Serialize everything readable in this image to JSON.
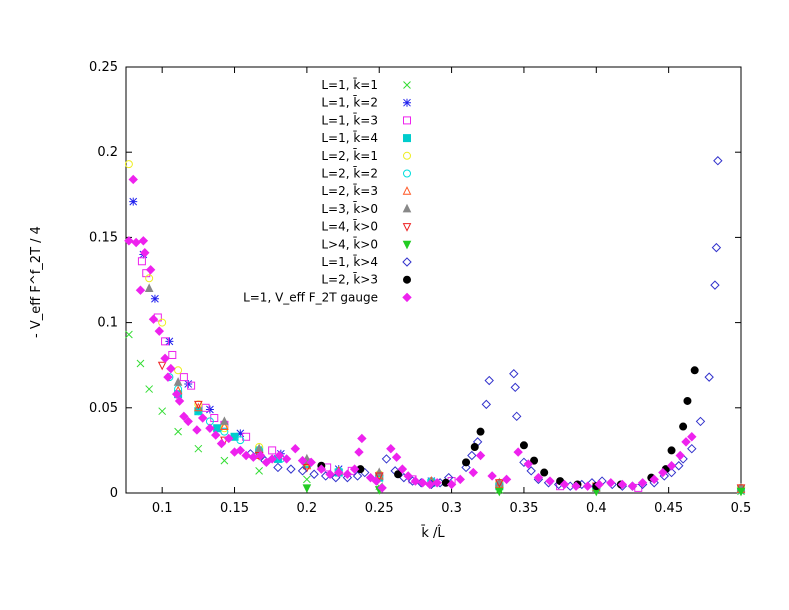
{
  "chart_data": {
    "type": "scatter",
    "title": "",
    "xlabel": "k̄ /L̂",
    "ylabel": "- V_eff F^f_2T / 4",
    "xlim": [
      0.075,
      0.5
    ],
    "ylim": [
      0,
      0.25
    ],
    "x_ticks": [
      "0.1",
      "0.15",
      "0.2",
      "0.25",
      "0.3",
      "0.35",
      "0.4",
      "0.45",
      "0.5"
    ],
    "y_ticks": [
      "0",
      "0.05",
      "0.1",
      "0.15",
      "0.2",
      "0.25"
    ],
    "grid": false,
    "legend_position": "top-center",
    "series": [
      {
        "name": "L=1, k̄=1",
        "marker": "x",
        "color": "#33dd33",
        "points": [
          [
            0.077,
            0.093
          ],
          [
            0.085,
            0.076
          ],
          [
            0.091,
            0.061
          ],
          [
            0.1,
            0.048
          ],
          [
            0.111,
            0.036
          ],
          [
            0.125,
            0.026
          ],
          [
            0.143,
            0.019
          ],
          [
            0.167,
            0.013
          ],
          [
            0.2,
            0.008
          ],
          [
            0.25,
            0.004
          ],
          [
            0.333,
            0.002
          ],
          [
            0.5,
            0.001
          ]
        ]
      },
      {
        "name": "L=1, k̄=2",
        "marker": "asterisk",
        "color": "#2222ee",
        "points": [
          [
            0.08,
            0.171
          ],
          [
            0.087,
            0.14
          ],
          [
            0.095,
            0.114
          ],
          [
            0.105,
            0.089
          ],
          [
            0.118,
            0.064
          ],
          [
            0.133,
            0.049
          ],
          [
            0.154,
            0.035
          ],
          [
            0.182,
            0.023
          ],
          [
            0.222,
            0.014
          ],
          [
            0.286,
            0.007
          ],
          [
            0.4,
            0.003
          ]
        ]
      },
      {
        "name": "L=1, k̄=3",
        "marker": "square-open",
        "color": "#ee22ee",
        "points": [
          [
            0.086,
            0.136
          ],
          [
            0.089,
            0.129
          ],
          [
            0.097,
            0.103
          ],
          [
            0.102,
            0.089
          ],
          [
            0.107,
            0.081
          ],
          [
            0.115,
            0.068
          ],
          [
            0.12,
            0.063
          ],
          [
            0.13,
            0.05
          ],
          [
            0.136,
            0.044
          ],
          [
            0.143,
            0.04
          ],
          [
            0.158,
            0.033
          ],
          [
            0.176,
            0.025
          ],
          [
            0.2,
            0.018
          ],
          [
            0.214,
            0.015
          ],
          [
            0.231,
            0.013
          ],
          [
            0.25,
            0.01
          ],
          [
            0.273,
            0.008
          ],
          [
            0.3,
            0.007
          ],
          [
            0.333,
            0.005
          ],
          [
            0.375,
            0.004
          ],
          [
            0.429,
            0.003
          ],
          [
            0.5,
            0.002
          ]
        ]
      },
      {
        "name": "L=1, k̄=4",
        "marker": "square-filled",
        "color": "#00cccc",
        "points": [
          [
            0.111,
            0.058
          ],
          [
            0.125,
            0.048
          ],
          [
            0.138,
            0.038
          ],
          [
            0.15,
            0.033
          ],
          [
            0.167,
            0.025
          ],
          [
            0.18,
            0.02
          ],
          [
            0.2,
            0.017
          ],
          [
            0.222,
            0.012
          ],
          [
            0.25,
            0.009
          ],
          [
            0.286,
            0.006
          ],
          [
            0.333,
            0.004
          ],
          [
            0.4,
            0.003
          ],
          [
            0.5,
            0.002
          ]
        ]
      },
      {
        "name": "L=2, k̄=1",
        "marker": "circle-open",
        "color": "#eeee22",
        "points": [
          [
            0.077,
            0.193
          ],
          [
            0.091,
            0.126
          ],
          [
            0.1,
            0.1
          ],
          [
            0.111,
            0.072
          ],
          [
            0.125,
            0.052
          ],
          [
            0.143,
            0.038
          ],
          [
            0.167,
            0.027
          ],
          [
            0.2,
            0.018
          ],
          [
            0.25,
            0.011
          ],
          [
            0.333,
            0.006
          ],
          [
            0.5,
            0.003
          ]
        ]
      },
      {
        "name": "L=2, k̄=2",
        "marker": "circle-open",
        "color": "#00dddd",
        "points": [
          [
            0.105,
            0.068
          ],
          [
            0.111,
            0.061
          ],
          [
            0.125,
            0.048
          ],
          [
            0.133,
            0.042
          ],
          [
            0.143,
            0.036
          ],
          [
            0.154,
            0.031
          ],
          [
            0.167,
            0.025
          ],
          [
            0.182,
            0.02
          ],
          [
            0.2,
            0.017
          ],
          [
            0.222,
            0.013
          ],
          [
            0.25,
            0.01
          ],
          [
            0.286,
            0.007
          ],
          [
            0.333,
            0.005
          ],
          [
            0.4,
            0.003
          ],
          [
            0.5,
            0.002
          ]
        ]
      },
      {
        "name": "L=2, k̄=3",
        "marker": "triangle-open",
        "color": "#ff5522",
        "points": [
          [
            0.111,
            0.06
          ],
          [
            0.125,
            0.05
          ],
          [
            0.143,
            0.039
          ],
          [
            0.167,
            0.022
          ],
          [
            0.2,
            0.016
          ],
          [
            0.222,
            0.013
          ],
          [
            0.25,
            0.01
          ],
          [
            0.286,
            0.007
          ],
          [
            0.333,
            0.005
          ],
          [
            0.4,
            0.003
          ],
          [
            0.5,
            0.002
          ]
        ]
      },
      {
        "name": "L=3, k̄>0",
        "marker": "triangle-filled",
        "color": "#888888",
        "points": [
          [
            0.091,
            0.12
          ],
          [
            0.111,
            0.065
          ],
          [
            0.143,
            0.042
          ],
          [
            0.167,
            0.026
          ],
          [
            0.2,
            0.02
          ],
          [
            0.25,
            0.012
          ],
          [
            0.333,
            0.006
          ],
          [
            0.5,
            0.003
          ]
        ]
      },
      {
        "name": "L=4, k̄>0",
        "marker": "triangle-down-open",
        "color": "#ee2222",
        "points": [
          [
            0.1,
            0.075
          ],
          [
            0.125,
            0.052
          ],
          [
            0.143,
            0.031
          ],
          [
            0.167,
            0.022
          ],
          [
            0.2,
            0.015
          ],
          [
            0.25,
            0.01
          ],
          [
            0.333,
            0.006
          ],
          [
            0.4,
            0.004
          ],
          [
            0.5,
            0.003
          ]
        ]
      },
      {
        "name": "L>4, k̄>0",
        "marker": "triangle-down-filled",
        "color": "#22cc22",
        "points": [
          [
            0.2,
            0.003
          ],
          [
            0.25,
            0.002
          ],
          [
            0.333,
            0.001
          ],
          [
            0.4,
            0.001
          ],
          [
            0.5,
            0.001
          ]
        ]
      },
      {
        "name": "L=1, k̄>4",
        "marker": "diamond-open",
        "color": "#3333cc",
        "points": [
          [
            0.161,
            0.023
          ],
          [
            0.171,
            0.019
          ],
          [
            0.18,
            0.015
          ],
          [
            0.189,
            0.014
          ],
          [
            0.197,
            0.013
          ],
          [
            0.205,
            0.011
          ],
          [
            0.213,
            0.01
          ],
          [
            0.22,
            0.009
          ],
          [
            0.228,
            0.009
          ],
          [
            0.235,
            0.01
          ],
          [
            0.24,
            0.012
          ],
          [
            0.255,
            0.02
          ],
          [
            0.261,
            0.013
          ],
          [
            0.267,
            0.009
          ],
          [
            0.273,
            0.007
          ],
          [
            0.279,
            0.006
          ],
          [
            0.286,
            0.005
          ],
          [
            0.292,
            0.006
          ],
          [
            0.298,
            0.009
          ],
          [
            0.31,
            0.015
          ],
          [
            0.314,
            0.022
          ],
          [
            0.318,
            0.03
          ],
          [
            0.324,
            0.052
          ],
          [
            0.326,
            0.066
          ],
          [
            0.343,
            0.07
          ],
          [
            0.344,
            0.062
          ],
          [
            0.345,
            0.045
          ],
          [
            0.35,
            0.018
          ],
          [
            0.355,
            0.013
          ],
          [
            0.36,
            0.008
          ],
          [
            0.367,
            0.006
          ],
          [
            0.374,
            0.005
          ],
          [
            0.382,
            0.004
          ],
          [
            0.39,
            0.005
          ],
          [
            0.397,
            0.006
          ],
          [
            0.404,
            0.007
          ],
          [
            0.411,
            0.005
          ],
          [
            0.418,
            0.004
          ],
          [
            0.425,
            0.004
          ],
          [
            0.432,
            0.005
          ],
          [
            0.44,
            0.006
          ],
          [
            0.447,
            0.01
          ],
          [
            0.452,
            0.012
          ],
          [
            0.457,
            0.016
          ],
          [
            0.46,
            0.02
          ],
          [
            0.466,
            0.026
          ],
          [
            0.472,
            0.042
          ],
          [
            0.478,
            0.068
          ],
          [
            0.482,
            0.122
          ],
          [
            0.483,
            0.144
          ],
          [
            0.484,
            0.195
          ]
        ]
      },
      {
        "name": "L=2, k̄>3",
        "marker": "circle-filled",
        "color": "#000000",
        "points": [
          [
            0.21,
            0.016
          ],
          [
            0.237,
            0.014
          ],
          [
            0.263,
            0.011
          ],
          [
            0.296,
            0.006
          ],
          [
            0.31,
            0.018
          ],
          [
            0.316,
            0.027
          ],
          [
            0.32,
            0.036
          ],
          [
            0.35,
            0.028
          ],
          [
            0.357,
            0.019
          ],
          [
            0.364,
            0.012
          ],
          [
            0.375,
            0.007
          ],
          [
            0.387,
            0.005
          ],
          [
            0.4,
            0.004
          ],
          [
            0.417,
            0.005
          ],
          [
            0.438,
            0.009
          ],
          [
            0.448,
            0.014
          ],
          [
            0.452,
            0.025
          ],
          [
            0.46,
            0.039
          ],
          [
            0.463,
            0.054
          ],
          [
            0.468,
            0.072
          ]
        ]
      },
      {
        "name": "L=1, V_eff F_2T gauge",
        "marker": "diamond-filled",
        "color": "#ee22ee",
        "points": [
          [
            0.077,
            0.148
          ],
          [
            0.08,
            0.184
          ],
          [
            0.082,
            0.147
          ],
          [
            0.085,
            0.119
          ],
          [
            0.087,
            0.148
          ],
          [
            0.088,
            0.141
          ],
          [
            0.092,
            0.131
          ],
          [
            0.094,
            0.102
          ],
          [
            0.098,
            0.095
          ],
          [
            0.102,
            0.079
          ],
          [
            0.104,
            0.068
          ],
          [
            0.106,
            0.073
          ],
          [
            0.11,
            0.058
          ],
          [
            0.112,
            0.054
          ],
          [
            0.115,
            0.045
          ],
          [
            0.118,
            0.042
          ],
          [
            0.124,
            0.037
          ],
          [
            0.128,
            0.044
          ],
          [
            0.133,
            0.038
          ],
          [
            0.137,
            0.034
          ],
          [
            0.141,
            0.029
          ],
          [
            0.146,
            0.032
          ],
          [
            0.15,
            0.024
          ],
          [
            0.154,
            0.025
          ],
          [
            0.158,
            0.022
          ],
          [
            0.163,
            0.021
          ],
          [
            0.168,
            0.022
          ],
          [
            0.172,
            0.018
          ],
          [
            0.176,
            0.02
          ],
          [
            0.181,
            0.022
          ],
          [
            0.186,
            0.02
          ],
          [
            0.192,
            0.026
          ],
          [
            0.197,
            0.019
          ],
          [
            0.203,
            0.018
          ],
          [
            0.21,
            0.014
          ],
          [
            0.216,
            0.011
          ],
          [
            0.222,
            0.012
          ],
          [
            0.228,
            0.011
          ],
          [
            0.233,
            0.014
          ],
          [
            0.236,
            0.024
          ],
          [
            0.238,
            0.032
          ],
          [
            0.244,
            0.009
          ],
          [
            0.248,
            0.007
          ],
          [
            0.252,
            0.003
          ],
          [
            0.258,
            0.026
          ],
          [
            0.262,
            0.021
          ],
          [
            0.266,
            0.014
          ],
          [
            0.27,
            0.01
          ],
          [
            0.275,
            0.007
          ],
          [
            0.28,
            0.006
          ],
          [
            0.285,
            0.005
          ],
          [
            0.29,
            0.006
          ],
          [
            0.3,
            0.005
          ],
          [
            0.306,
            0.008
          ],
          [
            0.315,
            0.012
          ],
          [
            0.32,
            0.022
          ],
          [
            0.328,
            0.01
          ],
          [
            0.338,
            0.008
          ],
          [
            0.346,
            0.024
          ],
          [
            0.353,
            0.017
          ],
          [
            0.36,
            0.009
          ],
          [
            0.368,
            0.007
          ],
          [
            0.378,
            0.005
          ],
          [
            0.386,
            0.004
          ],
          [
            0.394,
            0.004
          ],
          [
            0.402,
            0.005
          ],
          [
            0.41,
            0.006
          ],
          [
            0.418,
            0.005
          ],
          [
            0.425,
            0.004
          ],
          [
            0.432,
            0.006
          ],
          [
            0.44,
            0.008
          ],
          [
            0.446,
            0.012
          ],
          [
            0.452,
            0.016
          ],
          [
            0.458,
            0.022
          ],
          [
            0.462,
            0.03
          ],
          [
            0.466,
            0.033
          ]
        ]
      }
    ]
  }
}
